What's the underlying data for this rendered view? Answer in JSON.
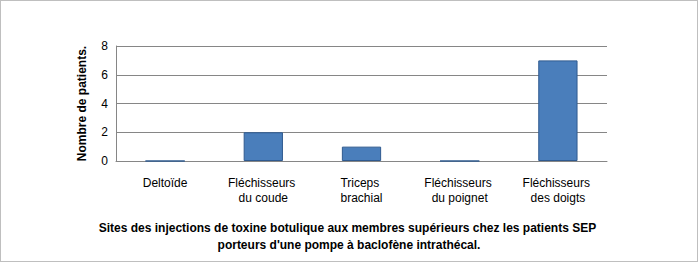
{
  "chart_data": {
    "type": "bar",
    "title": "Sites des injections de toxine botulique aux membres supérieurs chez les patients SEP porteurs d'une pompe à baclofène intrathécal.",
    "y_label": "Nombre de patients.",
    "categories": [
      "Deltoïde",
      "Fléchisseurs du coude",
      "Triceps brachial",
      "Fléchisseurs du poignet",
      "Fléchisseurs des doigts"
    ],
    "values": [
      0,
      2,
      1,
      0,
      7
    ],
    "color": "#4a7ebb",
    "ylim": [
      0,
      8
    ],
    "yticks": [
      0,
      2,
      4,
      6,
      8
    ],
    "grid": true
  }
}
